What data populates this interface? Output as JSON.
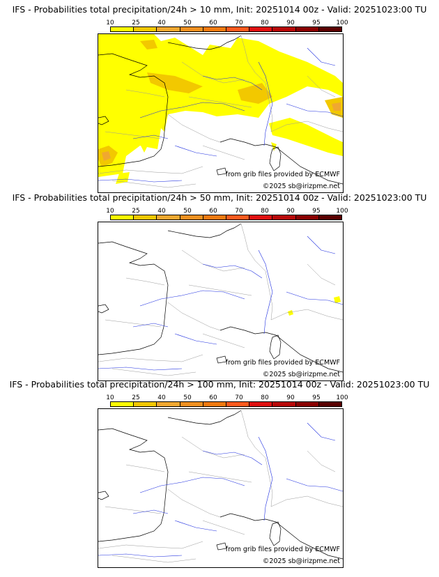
{
  "legend": {
    "labels": [
      "10",
      "25",
      "40",
      "50",
      "60",
      "70",
      "80",
      "90",
      "95",
      "100"
    ],
    "colors": [
      "#ffff00",
      "#f2c800",
      "#f0a830",
      "#f09020",
      "#f07a10",
      "#ff5a1e",
      "#e01010",
      "#b80808",
      "#8a0000",
      "#5a0000"
    ]
  },
  "panels": [
    {
      "title": "IFS - Probabilities total precipitation/24h > 10 mm, Init: 20251014 00z - Valid: 20251023:00 TU",
      "source": "from grib files provided by ECMWF",
      "copyright": "©2025 sb@irizpme.net"
    },
    {
      "title": "IFS - Probabilities total precipitation/24h > 50 mm, Init: 20251014 00z - Valid: 20251023:00 TU",
      "source": "from grib files provided by ECMWF",
      "copyright": "©2025 sb@irizpme.net"
    },
    {
      "title": "IFS - Probabilities total precipitation/24h > 100 mm, Init: 20251014 00z - Valid: 20251023:00 TU",
      "source": "from grib files provided by ECMWF",
      "copyright": "©2025 sb@irizpme.net"
    }
  ]
}
